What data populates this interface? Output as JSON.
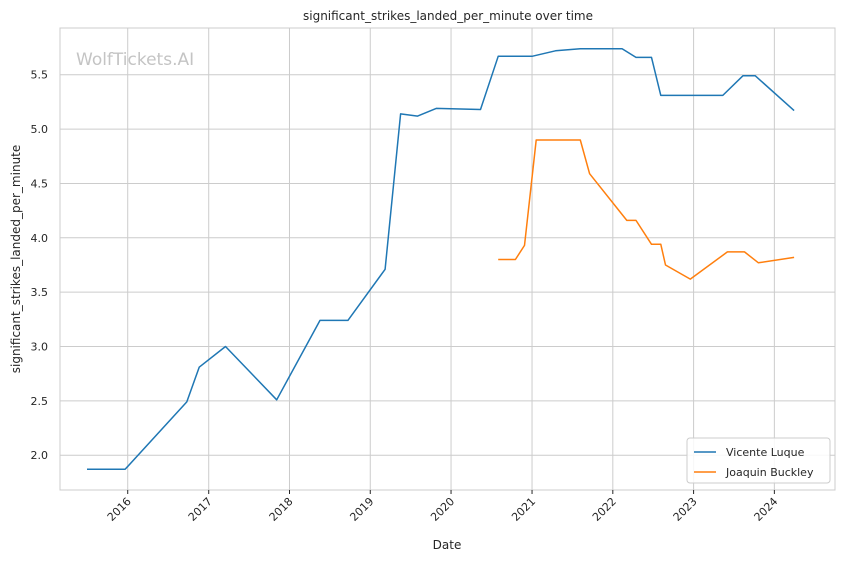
{
  "watermark": "WolfTickets.AI",
  "chart_data": {
    "type": "line",
    "title": "significant_strikes_landed_per_minute over time",
    "xlabel": "Date",
    "ylabel": "significant_strikes_landed_per_minute",
    "xlim": [
      "2015-03-01",
      "2024-10-01"
    ],
    "ylim": [
      1.68,
      5.93
    ],
    "xticks": [
      {
        "date": "2016-01-01",
        "label": "2016"
      },
      {
        "date": "2017-01-01",
        "label": "2017"
      },
      {
        "date": "2018-01-01",
        "label": "2018"
      },
      {
        "date": "2019-01-01",
        "label": "2019"
      },
      {
        "date": "2020-01-01",
        "label": "2020"
      },
      {
        "date": "2021-01-01",
        "label": "2021"
      },
      {
        "date": "2022-01-01",
        "label": "2022"
      },
      {
        "date": "2023-01-01",
        "label": "2023"
      },
      {
        "date": "2024-01-01",
        "label": "2024"
      }
    ],
    "yticks": [
      {
        "value": 2.0,
        "label": "2.0"
      },
      {
        "value": 2.5,
        "label": "2.5"
      },
      {
        "value": 3.0,
        "label": "3.0"
      },
      {
        "value": 3.5,
        "label": "3.5"
      },
      {
        "value": 4.0,
        "label": "4.0"
      },
      {
        "value": 4.5,
        "label": "4.5"
      },
      {
        "value": 5.0,
        "label": "5.0"
      },
      {
        "value": 5.5,
        "label": "5.5"
      }
    ],
    "grid": true,
    "legend_position": "bottom-right",
    "series": [
      {
        "name": "Vicente Luque",
        "color": "#1f77b4",
        "points": [
          {
            "x": "2015-07-01",
            "y": 1.87
          },
          {
            "x": "2015-12-20",
            "y": 1.87
          },
          {
            "x": "2016-09-24",
            "y": 2.49
          },
          {
            "x": "2016-11-19",
            "y": 2.81
          },
          {
            "x": "2017-03-18",
            "y": 3.0
          },
          {
            "x": "2017-11-04",
            "y": 2.51
          },
          {
            "x": "2018-05-19",
            "y": 3.24
          },
          {
            "x": "2018-09-22",
            "y": 3.24
          },
          {
            "x": "2019-03-09",
            "y": 3.71
          },
          {
            "x": "2019-05-18",
            "y": 5.14
          },
          {
            "x": "2019-08-03",
            "y": 5.12
          },
          {
            "x": "2019-10-26",
            "y": 5.19
          },
          {
            "x": "2020-05-13",
            "y": 5.18
          },
          {
            "x": "2020-08-01",
            "y": 5.67
          },
          {
            "x": "2021-01-01",
            "y": 5.67
          },
          {
            "x": "2021-04-17",
            "y": 5.72
          },
          {
            "x": "2021-08-07",
            "y": 5.74
          },
          {
            "x": "2022-02-12",
            "y": 5.74
          },
          {
            "x": "2022-04-16",
            "y": 5.66
          },
          {
            "x": "2022-06-25",
            "y": 5.66
          },
          {
            "x": "2022-08-06",
            "y": 5.31
          },
          {
            "x": "2023-05-13",
            "y": 5.31
          },
          {
            "x": "2023-08-12",
            "y": 5.49
          },
          {
            "x": "2023-10-07",
            "y": 5.49
          },
          {
            "x": "2024-03-30",
            "y": 5.17
          }
        ]
      },
      {
        "name": "Joaquin Buckley",
        "color": "#ff7f0e",
        "points": [
          {
            "x": "2020-08-01",
            "y": 3.8
          },
          {
            "x": "2020-10-18",
            "y": 3.8
          },
          {
            "x": "2020-11-28",
            "y": 3.93
          },
          {
            "x": "2021-01-20",
            "y": 4.9
          },
          {
            "x": "2021-08-07",
            "y": 4.9
          },
          {
            "x": "2021-09-18",
            "y": 4.59
          },
          {
            "x": "2022-03-05",
            "y": 4.16
          },
          {
            "x": "2022-04-16",
            "y": 4.16
          },
          {
            "x": "2022-06-25",
            "y": 3.94
          },
          {
            "x": "2022-08-06",
            "y": 3.94
          },
          {
            "x": "2022-08-27",
            "y": 3.75
          },
          {
            "x": "2022-12-17",
            "y": 3.62
          },
          {
            "x": "2023-06-03",
            "y": 3.87
          },
          {
            "x": "2023-08-19",
            "y": 3.87
          },
          {
            "x": "2023-10-21",
            "y": 3.77
          },
          {
            "x": "2024-03-30",
            "y": 3.82
          }
        ]
      }
    ]
  }
}
